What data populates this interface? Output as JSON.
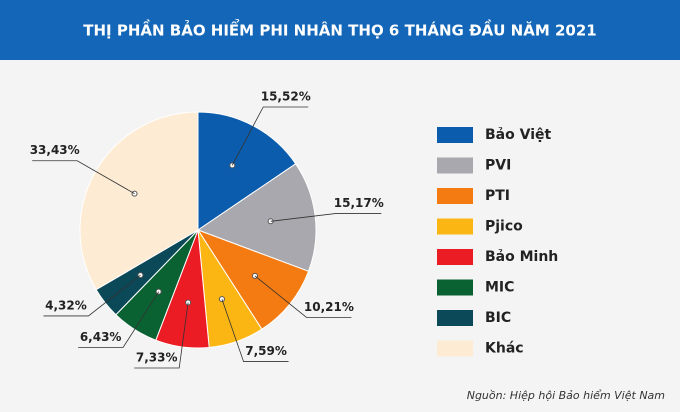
{
  "chart_data": {
    "type": "pie",
    "title": "THỊ PHẦN BẢO HIỂM PHI NHÂN THỌ 6 THÁNG ĐẦU NĂM 2021",
    "categories": [
      "Bảo Việt",
      "PVI",
      "PTI",
      "Pjico",
      "Bảo Minh",
      "MIC",
      "BIC",
      "Khác"
    ],
    "values": [
      15.52,
      15.17,
      10.21,
      7.59,
      7.33,
      6.43,
      4.32,
      33.43
    ],
    "value_labels": [
      "15,52%",
      "15,17%",
      "10,21%",
      "7,59%",
      "7,33%",
      "6,43%",
      "4,32%",
      "33,43%"
    ],
    "colors": [
      "#0b5cad",
      "#a8a8ae",
      "#f47b12",
      "#fbb614",
      "#ec1c24",
      "#0a6132",
      "#0b4858",
      "#fdebd4"
    ],
    "source": "Nguồn: Hiệp hội Bảo hiểm Việt Nam"
  }
}
